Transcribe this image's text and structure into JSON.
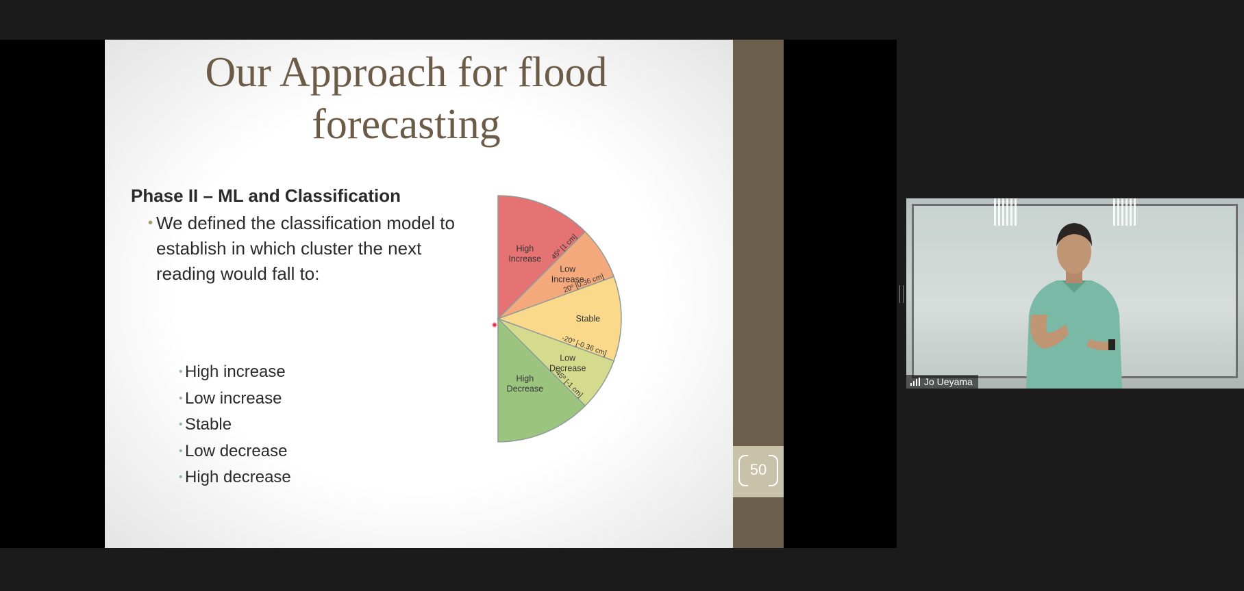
{
  "slide": {
    "title_line1": "Our Approach for flood",
    "title_line2": "forecasting",
    "phase_heading": "Phase II – ML and Classification",
    "intro_line1": "We defined the classification model to",
    "intro_line2": "establish in which cluster the next",
    "intro_line3": "reading would fall to:",
    "options": [
      "High increase",
      "Low increase",
      "Stable",
      "Low decrease",
      "High decrease"
    ],
    "page_number": "50"
  },
  "chart_data": {
    "type": "pie",
    "categories": [
      "High Increase",
      "Low Increase",
      "Stable",
      "Low Decrease",
      "High Decrease"
    ],
    "category_labels": [
      [
        "High",
        "Increase"
      ],
      [
        "Low",
        "Increase"
      ],
      [
        "Stable"
      ],
      [
        "Low",
        "Decrease"
      ],
      [
        "High",
        "Decrease"
      ]
    ],
    "angle_bounds_deg": [
      90,
      45,
      20,
      -20,
      -45,
      -90
    ],
    "boundary_labels": [
      "45º [1 cm]",
      "20º [0.36 cm]",
      "-20º [-0.36 cm]",
      "-45º [-1 cm]"
    ],
    "colors": [
      "#e57373",
      "#f4a97c",
      "#fad98a",
      "#d4db8c",
      "#9bc47e"
    ]
  },
  "video": {
    "participant_name": "Jo Ueyama"
  }
}
